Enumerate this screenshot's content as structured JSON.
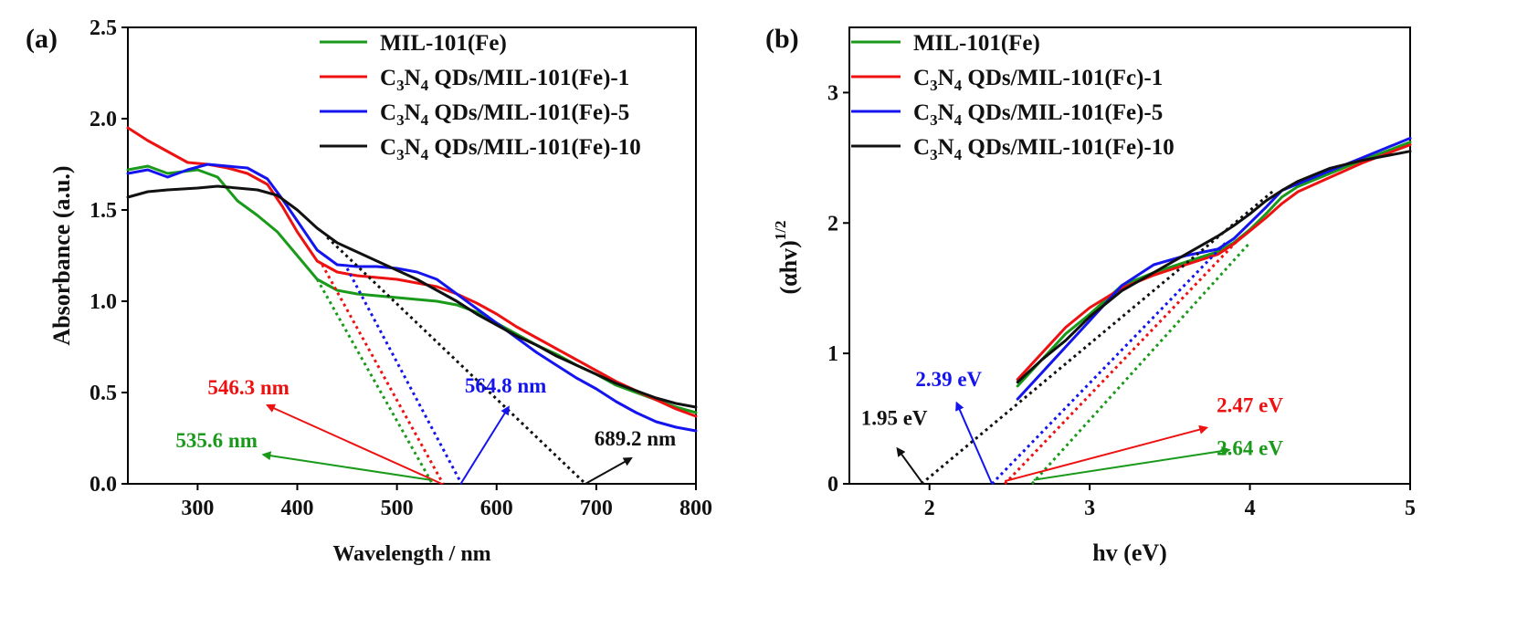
{
  "figure": {
    "colors": {
      "green": "#1a9a1a",
      "red": "#ee1111",
      "blue": "#1414ee",
      "black": "#111111"
    }
  },
  "chart_data": [
    {
      "id": "a",
      "type": "line",
      "panel_label": "(a)",
      "xlabel": "Wavelength / nm",
      "ylabel": "Absorbance (a.u.)",
      "xlim": [
        230,
        800
      ],
      "ylim": [
        0,
        2.5
      ],
      "xticks": [
        "300",
        "400",
        "500",
        "600",
        "700",
        "800"
      ],
      "xtick_values": [
        300,
        400,
        500,
        600,
        700,
        800
      ],
      "yticks": [
        "0.0",
        "0.5",
        "1.0",
        "1.5",
        "2.0",
        "2.5"
      ],
      "ytick_values": [
        0.0,
        0.5,
        1.0,
        1.5,
        2.0,
        2.5
      ],
      "legend": [
        "MIL-101(Fe)",
        "C3N4 QDs/MIL-101(Fe)-1",
        "C3N4 QDs/MIL-101(Fe)-5",
        "C3N4 QDs/MIL-101(Fe)-10"
      ],
      "series": [
        {
          "name": "MIL-101(Fe)",
          "color": "green",
          "x": [
            230,
            250,
            270,
            300,
            320,
            340,
            360,
            380,
            400,
            420,
            440,
            460,
            480,
            500,
            520,
            540,
            560,
            580,
            600,
            620,
            640,
            660,
            680,
            700,
            720,
            740,
            760,
            780,
            800
          ],
          "y": [
            1.72,
            1.74,
            1.7,
            1.72,
            1.68,
            1.55,
            1.47,
            1.38,
            1.25,
            1.12,
            1.06,
            1.04,
            1.03,
            1.02,
            1.01,
            1.0,
            0.98,
            0.94,
            0.88,
            0.82,
            0.76,
            0.71,
            0.65,
            0.6,
            0.54,
            0.5,
            0.46,
            0.42,
            0.39
          ]
        },
        {
          "name": "C3N4 QDs/MIL-101(Fe)-1",
          "color": "red",
          "x": [
            230,
            250,
            270,
            290,
            310,
            330,
            350,
            370,
            385,
            400,
            420,
            440,
            460,
            480,
            500,
            520,
            540,
            560,
            580,
            600,
            620,
            640,
            660,
            680,
            700,
            720,
            740,
            760,
            780,
            800
          ],
          "y": [
            1.95,
            1.88,
            1.82,
            1.76,
            1.75,
            1.73,
            1.7,
            1.64,
            1.52,
            1.38,
            1.22,
            1.16,
            1.14,
            1.13,
            1.12,
            1.1,
            1.08,
            1.04,
            0.99,
            0.93,
            0.86,
            0.8,
            0.74,
            0.68,
            0.62,
            0.56,
            0.51,
            0.46,
            0.41,
            0.37
          ]
        },
        {
          "name": "C3N4 QDs/MIL-101(Fe)-5",
          "color": "blue",
          "x": [
            230,
            250,
            270,
            290,
            310,
            330,
            350,
            370,
            385,
            400,
            420,
            440,
            460,
            480,
            500,
            520,
            540,
            560,
            580,
            600,
            620,
            640,
            660,
            680,
            700,
            720,
            740,
            760,
            780,
            800
          ],
          "y": [
            1.7,
            1.72,
            1.68,
            1.72,
            1.75,
            1.74,
            1.73,
            1.67,
            1.56,
            1.44,
            1.28,
            1.2,
            1.19,
            1.19,
            1.18,
            1.16,
            1.12,
            1.04,
            0.96,
            0.88,
            0.8,
            0.72,
            0.65,
            0.58,
            0.52,
            0.45,
            0.39,
            0.34,
            0.31,
            0.29
          ]
        },
        {
          "name": "C3N4 QDs/MIL-101(Fe)-10",
          "color": "black",
          "x": [
            230,
            250,
            270,
            300,
            320,
            340,
            360,
            380,
            400,
            420,
            440,
            460,
            480,
            500,
            520,
            540,
            560,
            580,
            600,
            620,
            640,
            660,
            680,
            700,
            720,
            740,
            760,
            780,
            800
          ],
          "y": [
            1.57,
            1.6,
            1.61,
            1.62,
            1.63,
            1.62,
            1.61,
            1.58,
            1.5,
            1.4,
            1.32,
            1.27,
            1.22,
            1.17,
            1.12,
            1.06,
            1.0,
            0.93,
            0.87,
            0.81,
            0.76,
            0.7,
            0.65,
            0.6,
            0.55,
            0.51,
            0.47,
            0.44,
            0.42
          ]
        }
      ],
      "tangents": [
        {
          "color": "green",
          "x": [
            420,
            535.6
          ],
          "y": [
            1.12,
            0.0
          ]
        },
        {
          "color": "red",
          "x": [
            425,
            546.3
          ],
          "y": [
            1.2,
            0.0
          ]
        },
        {
          "color": "blue",
          "x": [
            450,
            564.8
          ],
          "y": [
            1.18,
            0.0
          ]
        },
        {
          "color": "black",
          "x": [
            430,
            689.2
          ],
          "y": [
            1.35,
            0.0
          ]
        }
      ],
      "annotations": [
        {
          "text": "546.3 nm",
          "color": "red",
          "at": [
            392,
            0.49
          ],
          "anchor": "end",
          "arrow_from": [
            545,
            0.0
          ],
          "arrow_to": [
            370,
            0.43
          ]
        },
        {
          "text": "535.6 nm",
          "color": "green",
          "at": [
            360,
            0.2
          ],
          "anchor": "end",
          "arrow_from": [
            535,
            0.02
          ],
          "arrow_to": [
            366,
            0.16
          ]
        },
        {
          "text": "564.8 nm",
          "color": "blue",
          "at": [
            568,
            0.5
          ],
          "anchor": "start",
          "arrow_from": [
            564,
            0.0
          ],
          "arrow_to": [
            612,
            0.42
          ]
        },
        {
          "text": "689.2 nm",
          "color": "black",
          "at": [
            698,
            0.21
          ],
          "anchor": "start",
          "arrow_from": [
            689,
            0.0
          ],
          "arrow_to": [
            735,
            0.14
          ]
        }
      ]
    },
    {
      "id": "b",
      "type": "line",
      "panel_label": "(b)",
      "xlabel": "hv (eV)",
      "ylabel": "(αhv)1/2",
      "ylabel_base": "(αhv)",
      "ylabel_sup": "1/2",
      "xlim": [
        1.5,
        5.0
      ],
      "ylim": [
        0,
        3.5
      ],
      "xticks": [
        "2",
        "3",
        "4",
        "5"
      ],
      "xtick_values": [
        2,
        3,
        4,
        5
      ],
      "yticks": [
        "0",
        "1",
        "2",
        "3"
      ],
      "ytick_values": [
        0,
        1,
        2,
        3
      ],
      "legend": [
        "MIL-101(Fe)",
        "C3N4 QDs/MIL-101(Fc)-1",
        "C3N4 QDs/MIL-101(Fe)-5",
        "C3N4 QDs/MIL-101(Fe)-10"
      ],
      "series": [
        {
          "name": "MIL-101(Fe)",
          "color": "green",
          "x": [
            2.55,
            2.7,
            2.85,
            3.0,
            3.2,
            3.4,
            3.6,
            3.8,
            3.9,
            4.0,
            4.1,
            4.2,
            4.3,
            4.5,
            4.7,
            5.0
          ],
          "y": [
            0.75,
            0.95,
            1.15,
            1.3,
            1.52,
            1.62,
            1.7,
            1.78,
            1.85,
            1.95,
            2.07,
            2.2,
            2.28,
            2.38,
            2.48,
            2.62
          ]
        },
        {
          "name": "C3N4 QDs/MIL-101(Fc)-1",
          "color": "red",
          "x": [
            2.55,
            2.7,
            2.85,
            3.0,
            3.2,
            3.4,
            3.6,
            3.8,
            3.9,
            4.0,
            4.1,
            4.2,
            4.3,
            4.5,
            4.7,
            5.0
          ],
          "y": [
            0.8,
            1.0,
            1.2,
            1.35,
            1.5,
            1.6,
            1.68,
            1.76,
            1.84,
            1.94,
            2.04,
            2.15,
            2.24,
            2.35,
            2.46,
            2.6
          ]
        },
        {
          "name": "C3N4 QDs/MIL-101(Fe)-5",
          "color": "blue",
          "x": [
            2.55,
            2.7,
            2.85,
            3.0,
            3.2,
            3.4,
            3.6,
            3.8,
            3.9,
            4.0,
            4.1,
            4.2,
            4.3,
            4.5,
            4.7,
            5.0
          ],
          "y": [
            0.65,
            0.85,
            1.05,
            1.25,
            1.52,
            1.68,
            1.75,
            1.8,
            1.88,
            2.0,
            2.12,
            2.25,
            2.3,
            2.4,
            2.5,
            2.65
          ]
        },
        {
          "name": "C3N4 QDs/MIL-101(Fe)-10",
          "color": "black",
          "x": [
            2.55,
            2.7,
            2.85,
            3.0,
            3.2,
            3.4,
            3.6,
            3.8,
            3.9,
            4.0,
            4.1,
            4.2,
            4.3,
            4.5,
            4.7,
            5.0
          ],
          "y": [
            0.78,
            0.95,
            1.1,
            1.28,
            1.48,
            1.62,
            1.76,
            1.9,
            1.98,
            2.07,
            2.17,
            2.25,
            2.32,
            2.42,
            2.48,
            2.55
          ]
        }
      ],
      "tangents": [
        {
          "color": "black",
          "x": [
            1.95,
            4.15
          ],
          "y": [
            0.0,
            2.25
          ]
        },
        {
          "color": "blue",
          "x": [
            2.39,
            3.85
          ],
          "y": [
            0.0,
            1.85
          ]
        },
        {
          "color": "red",
          "x": [
            2.47,
            3.95
          ],
          "y": [
            0.0,
            1.9
          ]
        },
        {
          "color": "green",
          "x": [
            2.64,
            4.0
          ],
          "y": [
            0.0,
            1.85
          ]
        }
      ],
      "annotations": [
        {
          "text": "1.95 eV",
          "color": "black",
          "at": [
            1.78,
            0.45
          ],
          "anchor": "middle",
          "arrow_from": [
            1.96,
            0.0
          ],
          "arrow_to": [
            1.8,
            0.27
          ]
        },
        {
          "text": "2.39 eV",
          "color": "blue",
          "at": [
            2.12,
            0.75
          ],
          "anchor": "middle",
          "arrow_from": [
            2.39,
            0.0
          ],
          "arrow_to": [
            2.17,
            0.62
          ]
        },
        {
          "text": "2.47 eV",
          "color": "red",
          "at": [
            4.0,
            0.55
          ],
          "anchor": "middle",
          "arrow_from": [
            2.47,
            0.02
          ],
          "arrow_to": [
            3.73,
            0.43
          ]
        },
        {
          "text": "2.64 eV",
          "color": "green",
          "at": [
            4.0,
            0.22
          ],
          "anchor": "middle",
          "arrow_from": [
            2.65,
            0.03
          ],
          "arrow_to": [
            3.87,
            0.26
          ]
        }
      ]
    }
  ]
}
